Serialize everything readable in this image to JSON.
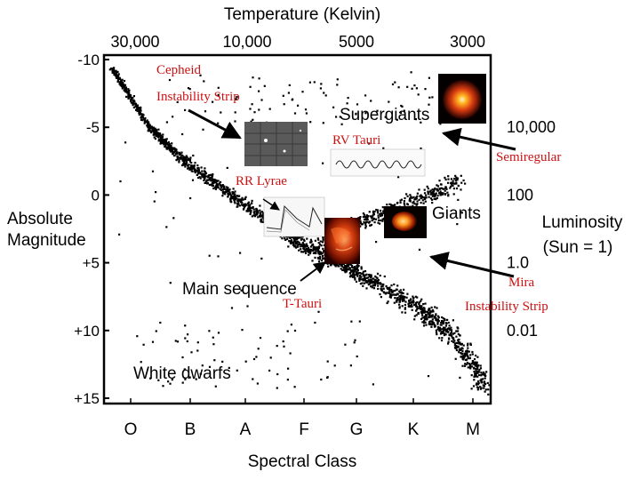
{
  "chart_data": {
    "type": "scatter",
    "title": "Temperature  (Kelvin)",
    "temperature_ticks": [
      "30,000",
      "10,000",
      "5000",
      "3000"
    ],
    "xlabel": "Spectral Class",
    "spectral_classes": [
      "O",
      "B",
      "A",
      "F",
      "G",
      "K",
      "M"
    ],
    "ylabel_left_line1": "Absolute",
    "ylabel_left_line2": "Magnitude",
    "magnitude_ticks": [
      "-10",
      "-5",
      "0",
      "+5",
      "+10",
      "+15"
    ],
    "magnitude_values": [
      -10,
      -5,
      0,
      5,
      10,
      15
    ],
    "ylim": [
      -10,
      15
    ],
    "ylabel_right_line1": "Luminosity",
    "ylabel_right_line2": "(Sun = 1)",
    "luminosity_ticks": [
      "10,000",
      "100",
      "1.0",
      "0.01"
    ],
    "luminosity_magnitudes": [
      -5,
      0,
      5,
      10
    ],
    "regions": {
      "supergiants": "Supergiants",
      "giants": "Giants",
      "main_sequence": "Main sequence",
      "white_dwarfs": "White dwarfs"
    },
    "annotations": {
      "cepheid_line1": "Cepheid",
      "cepheid_line2": "Instability Strip",
      "rv_tauri": "RV Tauri",
      "semiregular": "Semiregular",
      "rr_lyrae": "RR Lyrae",
      "mira_line1": "Mira",
      "mira_line2": "Instability Strip",
      "t_tauri": "T-Tauri"
    },
    "colors": {
      "annotation": "#cc1111",
      "points": "#000000"
    }
  }
}
